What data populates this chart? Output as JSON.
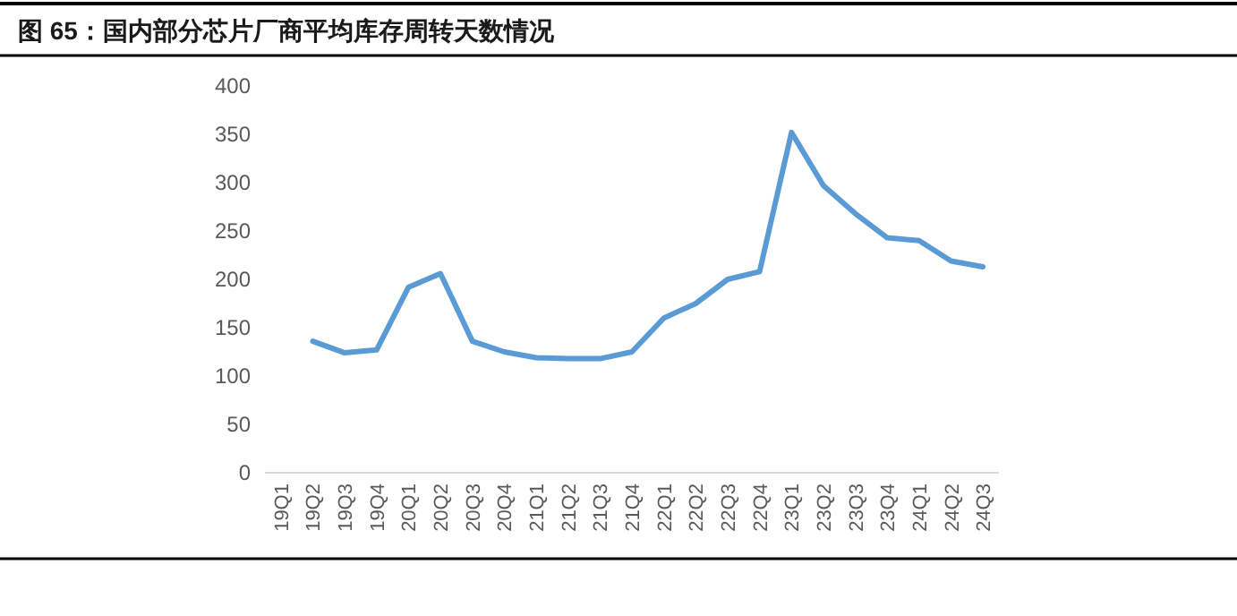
{
  "chart_data": {
    "type": "line",
    "title": "图 65：国内部分芯片厂商平均库存周转天数情况",
    "categories": [
      "19Q1",
      "19Q2",
      "19Q3",
      "19Q4",
      "20Q1",
      "20Q2",
      "20Q3",
      "20Q4",
      "21Q1",
      "21Q2",
      "21Q3",
      "21Q4",
      "22Q1",
      "22Q2",
      "22Q3",
      "22Q4",
      "23Q1",
      "23Q2",
      "23Q3",
      "23Q4",
      "24Q1",
      "24Q2",
      "24Q3"
    ],
    "series": [
      {
        "color": "#5b9bd5",
        "values": [
          null,
          136,
          124,
          127,
          192,
          206,
          136,
          125,
          119,
          118,
          118,
          125,
          160,
          175,
          200,
          208,
          352,
          297,
          268,
          243,
          240,
          219,
          213
        ]
      }
    ],
    "ylim": [
      0,
      400
    ],
    "yticks": [
      0,
      50,
      100,
      150,
      200,
      250,
      300,
      350,
      400
    ],
    "grid": false
  }
}
